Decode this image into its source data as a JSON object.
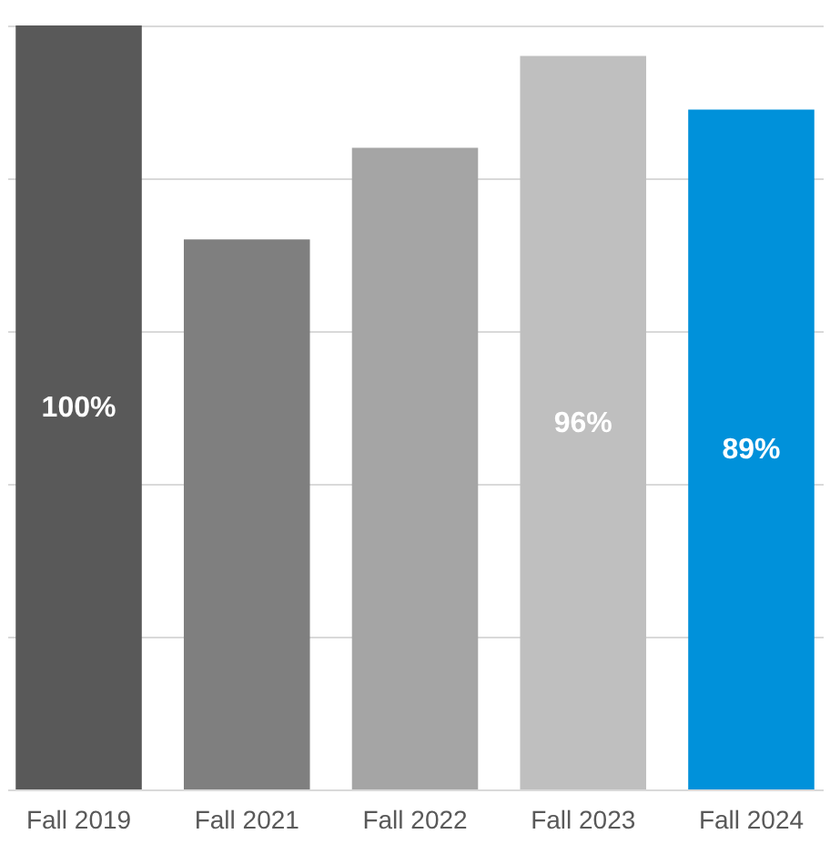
{
  "chart_data": {
    "type": "bar",
    "categories": [
      "Fall 2019",
      "Fall 2021",
      "Fall 2022",
      "Fall 2023",
      "Fall 2024"
    ],
    "values": [
      100,
      72,
      84,
      96,
      89
    ],
    "colors": [
      "#595959",
      "#7f7f7f",
      "#a5a5a5",
      "#bfbfbf",
      "#0091da"
    ],
    "value_labels": [
      "100%",
      null,
      null,
      "96%",
      "89%"
    ],
    "ylim": [
      0,
      100
    ],
    "yticks": [
      {
        "value": 0,
        "label": null
      },
      {
        "value": 20,
        "label": null
      },
      {
        "value": 40,
        "label": null
      },
      {
        "value": 60,
        "label": null
      },
      {
        "value": 80,
        "label": null
      },
      {
        "value": 100,
        "label": null
      }
    ],
    "grid": "y",
    "tick_labels": "x"
  }
}
